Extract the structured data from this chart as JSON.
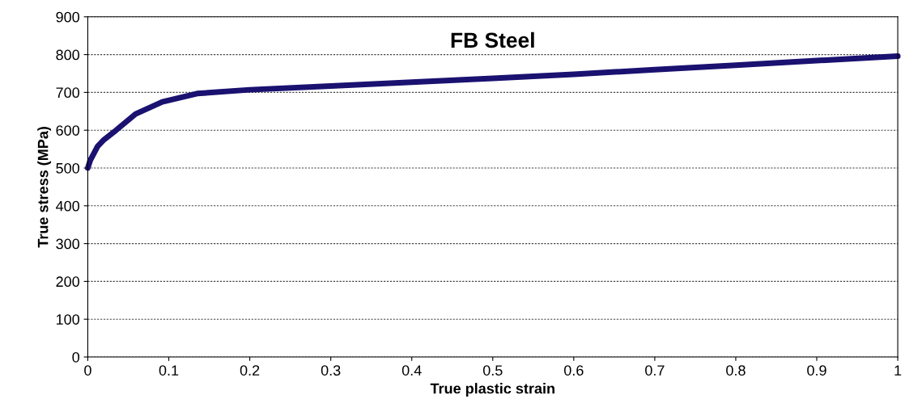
{
  "chart_data": {
    "type": "line",
    "title": "FB Steel",
    "xlabel": "True plastic strain",
    "ylabel": "True stress (MPa)",
    "x": [
      0,
      0.003,
      0.012,
      0.02,
      0.035,
      0.059,
      0.092,
      0.135,
      0.2,
      0.3,
      0.4,
      0.5,
      0.6,
      0.7,
      0.8,
      0.9,
      1.0
    ],
    "series": [
      {
        "color": "#1a1170",
        "values": [
          500,
          520,
          557,
          575,
          600,
          643,
          675,
          697,
          707,
          717,
          727,
          737,
          748,
          760,
          772,
          784,
          796
        ]
      }
    ],
    "xlim": [
      0,
      1
    ],
    "xticks": [
      0,
      0.1,
      0.2,
      0.3,
      0.4,
      0.5,
      0.6,
      0.7,
      0.8,
      0.9,
      1
    ],
    "ylim": [
      0,
      900
    ],
    "yticks": [
      0,
      100,
      200,
      300,
      400,
      500,
      600,
      700,
      800,
      900
    ],
    "grid": "y",
    "legend": false,
    "marker": "none",
    "line_style": "solid"
  }
}
